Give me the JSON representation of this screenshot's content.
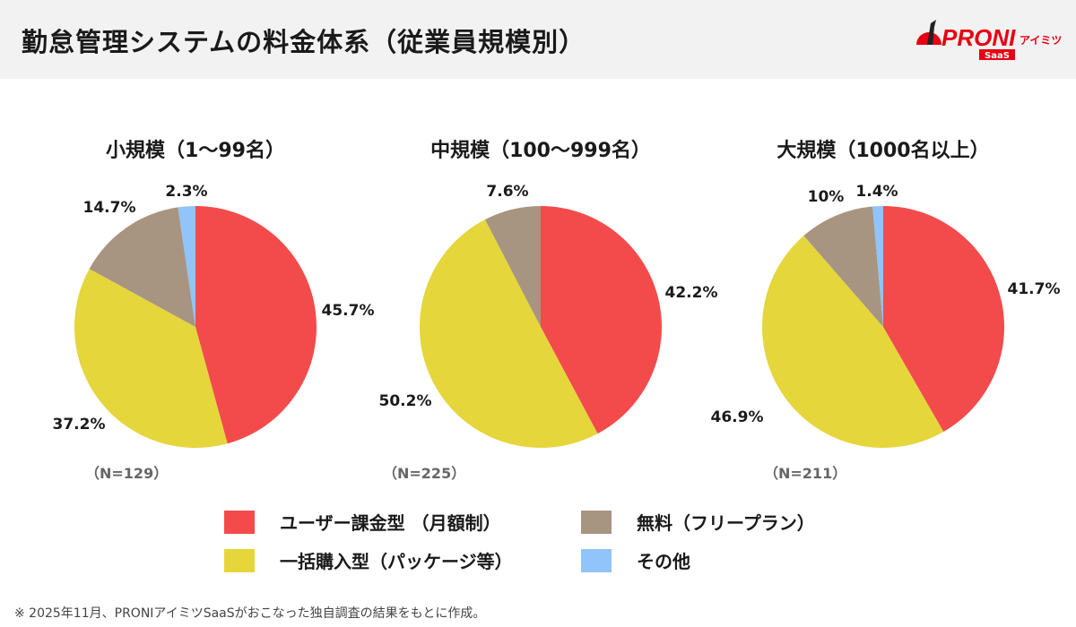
{
  "title": "勤怠管理システムの料金体系（従業員規模別）",
  "logo": {
    "text": "PRONI",
    "sub": "アイミツ",
    "badge": "SaaS"
  },
  "colors": {
    "user": "#F34B4B",
    "package": "#E5D63B",
    "free": "#A89581",
    "other": "#90C4FA"
  },
  "chart_data": [
    {
      "type": "pie",
      "title": "小規模（1〜99名）",
      "n": "（N=129）",
      "labels": [
        "ユーザー課金型 （月額制）",
        "一括購入型（パッケージ等）",
        "無料（フリープラン）",
        "その他"
      ],
      "values": [
        45.7,
        37.2,
        14.7,
        2.3
      ],
      "value_labels": [
        "45.7%",
        "37.2%",
        "14.7%",
        "2.3%"
      ]
    },
    {
      "type": "pie",
      "title": "中規模（100〜999名）",
      "n": "（N=225）",
      "labels": [
        "ユーザー課金型 （月額制）",
        "一括購入型（パッケージ等）",
        "無料（フリープラン）",
        "その他"
      ],
      "values": [
        42.2,
        50.2,
        7.6,
        0
      ],
      "value_labels": [
        "42.2%",
        "50.2%",
        "7.6%",
        ""
      ]
    },
    {
      "type": "pie",
      "title": "大規模（1000名以上）",
      "n": "（N=211）",
      "labels": [
        "ユーザー課金型 （月額制）",
        "一括購入型（パッケージ等）",
        "無料（フリープラン）",
        "その他"
      ],
      "values": [
        41.7,
        46.9,
        10,
        1.4
      ],
      "value_labels": [
        "41.7%",
        "46.9%",
        "10%",
        "1.4%"
      ]
    }
  ],
  "legend": [
    {
      "label": "ユーザー課金型 （月額制）",
      "color": "#F34B4B"
    },
    {
      "label": "一括購入型（パッケージ等）",
      "color": "#E5D63B"
    },
    {
      "label": "無料（フリープラン）",
      "color": "#A89581"
    },
    {
      "label": "その他",
      "color": "#90C4FA"
    }
  ],
  "footnote": "※ 2025年11月、PRONIアイミツSaaSがおこなった独自調査の結果をもとに作成。"
}
